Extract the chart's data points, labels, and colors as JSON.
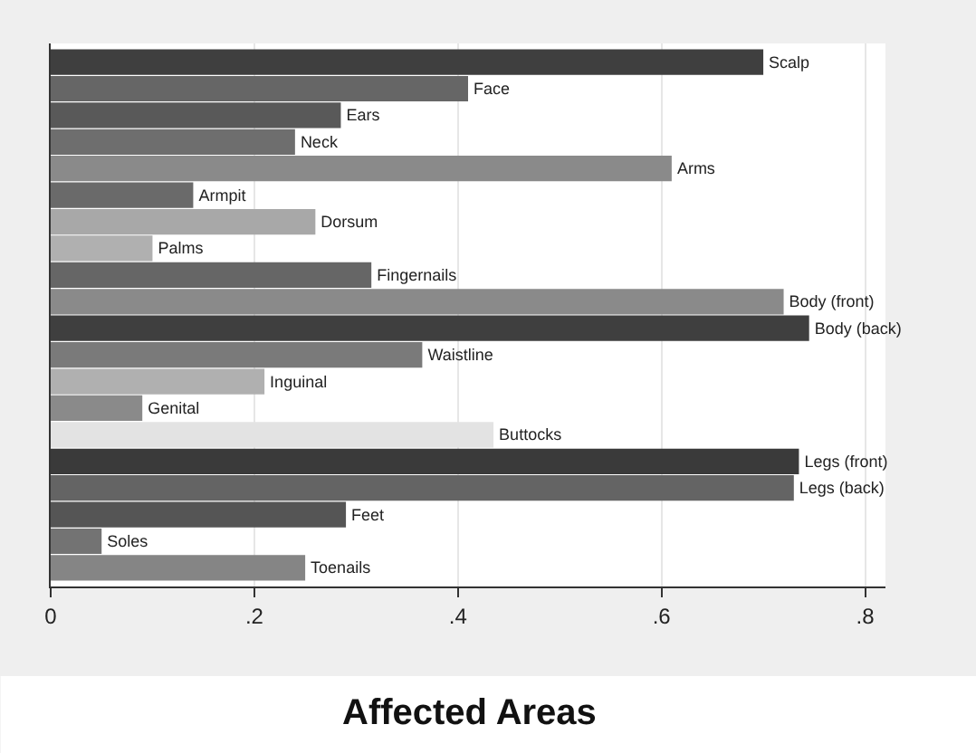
{
  "chart_data": {
    "type": "bar",
    "orientation": "horizontal",
    "title": "Affected Areas",
    "categories": [
      "Scalp",
      "Face",
      "Ears",
      "Neck",
      "Arms",
      "Armpit",
      "Dorsum",
      "Palms",
      "Fingernails",
      "Body (front)",
      "Body (back)",
      "Waistline",
      "Inguinal",
      "Genital",
      "Buttocks",
      "Legs (front)",
      "Legs (back)",
      "Feet",
      "Soles",
      "Toenails"
    ],
    "values": [
      0.7,
      0.41,
      0.285,
      0.24,
      0.61,
      0.14,
      0.26,
      0.1,
      0.315,
      0.72,
      0.745,
      0.365,
      0.21,
      0.09,
      0.435,
      0.735,
      0.73,
      0.29,
      0.05,
      0.25
    ],
    "colors": [
      "#3f3f3f",
      "#666666",
      "#595959",
      "#6e6e6e",
      "#8a8a8a",
      "#6a6a6a",
      "#a8a8a8",
      "#b0b0b0",
      "#666666",
      "#8a8a8a",
      "#3f3f3f",
      "#7a7a7a",
      "#b0b0b0",
      "#8a8a8a",
      "#e3e3e3",
      "#3a3a3a",
      "#646464",
      "#555555",
      "#737373",
      "#858585"
    ],
    "xlim": [
      0,
      0.82
    ],
    "xticks": [
      0,
      {
        "value": 0.2,
        "label": ".2"
      },
      {
        "value": 0.4,
        "label": ".4"
      },
      {
        "value": 0.6,
        "label": ".6"
      },
      {
        "value": 0.8,
        "label": ".8"
      }
    ],
    "tick_labels": "x",
    "grid": "x",
    "legend": false
  }
}
